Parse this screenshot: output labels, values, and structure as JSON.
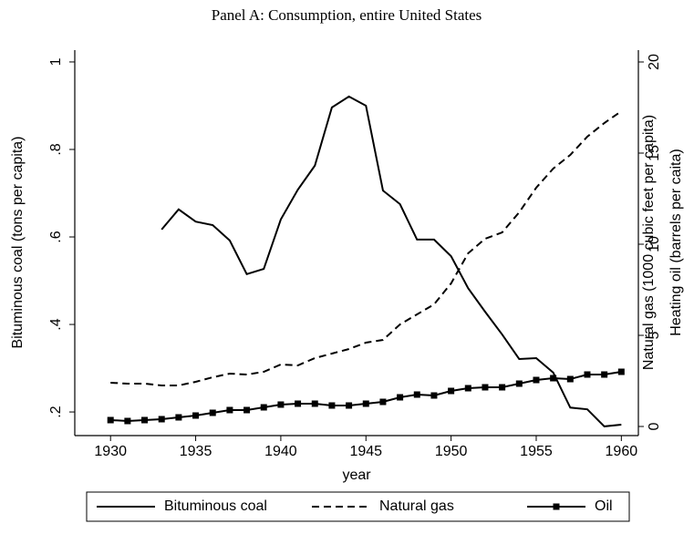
{
  "chart_data": {
    "type": "line",
    "title": "Panel A: Consumption, entire United States",
    "x_label": "year",
    "y_label": "Bituminous coal (tons per capita)",
    "y2_labels": [
      "Natural gas (1000 cubic feet per capita)",
      "Heating oil (barrels per caita)"
    ],
    "x": [
      1930,
      1931,
      1932,
      1933,
      1934,
      1935,
      1936,
      1937,
      1938,
      1939,
      1940,
      1941,
      1942,
      1943,
      1944,
      1945,
      1946,
      1947,
      1948,
      1949,
      1950,
      1951,
      1952,
      1953,
      1954,
      1955,
      1956,
      1957,
      1958,
      1959,
      1960
    ],
    "series": [
      {
        "name": "Bituminous coal",
        "color": "#000000",
        "style": "solid",
        "values": [
          null,
          null,
          null,
          0.617,
          0.663,
          0.635,
          0.627,
          0.592,
          0.515,
          0.527,
          0.64,
          0.708,
          0.763,
          0.896,
          0.921,
          0.9,
          0.706,
          0.675,
          0.594,
          0.594,
          0.556,
          0.483,
          0.429,
          0.377,
          0.321,
          0.323,
          0.29,
          0.21,
          0.206,
          0.167,
          0.171
        ]
      },
      {
        "name": "Natural gas",
        "color": "#000000",
        "style": "dash",
        "axis": "y2",
        "values": [
          2.4,
          2.35,
          2.35,
          2.25,
          2.25,
          2.45,
          2.7,
          2.9,
          2.85,
          3.0,
          3.4,
          3.35,
          3.75,
          4.0,
          4.25,
          4.6,
          4.75,
          5.6,
          6.15,
          6.7,
          7.85,
          9.5,
          10.3,
          10.65,
          11.75,
          13.1,
          14.15,
          14.9,
          15.9,
          16.65,
          17.3
        ]
      },
      {
        "name": "Oil",
        "color": "#000000",
        "style": "solid",
        "marker": "square",
        "axis": "y2",
        "values": [
          0.35,
          0.3,
          0.35,
          0.4,
          0.5,
          0.6,
          0.75,
          0.9,
          0.9,
          1.05,
          1.2,
          1.25,
          1.25,
          1.15,
          1.15,
          1.25,
          1.35,
          1.6,
          1.75,
          1.7,
          1.95,
          2.1,
          2.15,
          2.15,
          2.35,
          2.55,
          2.65,
          2.6,
          2.85,
          2.85,
          3.0
        ]
      }
    ],
    "xlim": [
      1927.9,
      1961
    ],
    "xticks": [
      1930,
      1935,
      1940,
      1945,
      1950,
      1955,
      1960
    ],
    "ylim": [
      0.146,
      1.027
    ],
    "yticks": [
      {
        "value": 0.2,
        "label": ".2"
      },
      {
        "value": 0.4,
        "label": ".4"
      },
      {
        "value": 0.6,
        "label": ".6"
      },
      {
        "value": 0.8,
        "label": ".8"
      },
      1
    ],
    "y2lim": [
      -0.5,
      20.65
    ],
    "y2ticks": [
      0,
      5,
      10,
      15,
      20
    ],
    "legend": "bottom"
  }
}
